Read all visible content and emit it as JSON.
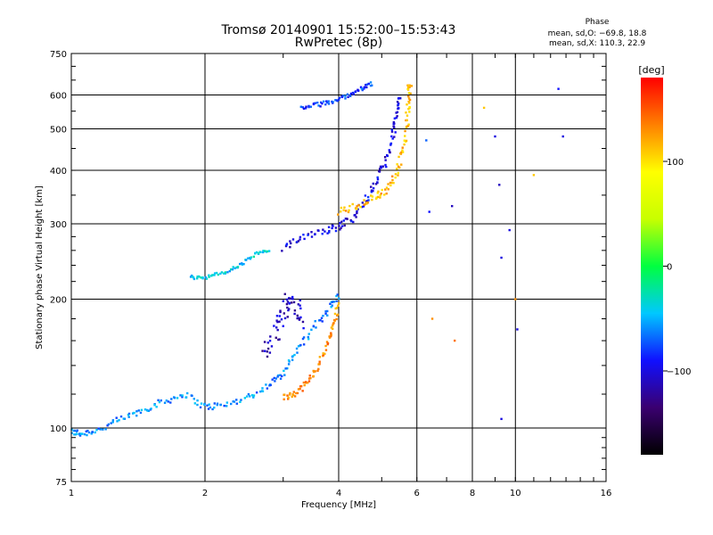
{
  "chart_data": {
    "type": "scatter",
    "title": "Tromsø 20140901 15:52:00–15:53:43",
    "subtitle": "RwPretec (8p)",
    "xlabel": "Frequency [MHz]",
    "ylabel": "Stationary phase Virtual Height [km]",
    "x_scale": "log2",
    "y_scale": "log",
    "xlim": [
      1,
      16
    ],
    "ylim": [
      75,
      750
    ],
    "x_ticks": [
      1,
      2,
      4,
      6,
      8,
      10,
      16
    ],
    "x_tick_labels": [
      "1",
      "2",
      "4",
      "6",
      "8",
      "10",
      "16"
    ],
    "y_ticks": [
      75,
      100,
      200,
      300,
      400,
      500,
      600,
      750
    ],
    "y_tick_labels": [
      "75",
      "100",
      "200",
      "300",
      "400",
      "500",
      "600",
      "750"
    ],
    "grid": true,
    "stats_block": {
      "heading": "Phase",
      "line1": "mean, sd,O: −69.8, 18.8",
      "line2": "mean, sd,X: 110.3, 22.9"
    },
    "colorbar": {
      "label": "[deg]",
      "range": [
        -180,
        180
      ],
      "ticks": [
        -100,
        0,
        100
      ],
      "tick_labels": [
        "−100",
        "0",
        "100"
      ],
      "colormap": [
        "#000000",
        "#3a0070",
        "#1010ff",
        "#00c8ff",
        "#00ff40",
        "#c8ff00",
        "#ffff00",
        "#ff8000",
        "#ff0000"
      ]
    },
    "traces": [
      {
        "label": "low_o_trace",
        "phase": -60,
        "spread": 0.018,
        "points": [
          [
            1.0,
            98
          ],
          [
            1.05,
            97
          ],
          [
            1.15,
            99
          ],
          [
            1.3,
            105
          ],
          [
            1.45,
            110
          ],
          [
            1.6,
            115
          ],
          [
            1.8,
            120
          ],
          [
            2.0,
            112
          ],
          [
            2.2,
            113
          ],
          [
            2.5,
            118
          ],
          [
            2.8,
            126
          ],
          [
            3.0,
            135
          ],
          [
            3.2,
            150
          ],
          [
            3.5,
            170
          ],
          [
            3.8,
            190
          ],
          [
            4.0,
            205
          ]
        ]
      },
      {
        "label": "low_x_trace",
        "phase": 130,
        "spread": 0.015,
        "points": [
          [
            3.0,
            118
          ],
          [
            3.2,
            120
          ],
          [
            3.4,
            128
          ],
          [
            3.6,
            140
          ],
          [
            3.8,
            160
          ],
          [
            3.9,
            175
          ],
          [
            4.0,
            195
          ]
        ]
      },
      {
        "label": "mid_blue_cluster",
        "phase": -110,
        "spread": 0.05,
        "points": [
          [
            2.7,
            150
          ],
          [
            2.9,
            165
          ],
          [
            3.0,
            185
          ],
          [
            3.1,
            200
          ],
          [
            3.2,
            190
          ],
          [
            3.3,
            175
          ]
        ]
      },
      {
        "label": "short_e_layer",
        "phase": -40,
        "spread": 0.01,
        "points": [
          [
            1.85,
            225
          ],
          [
            2.0,
            225
          ],
          [
            2.2,
            230
          ],
          [
            2.4,
            240
          ],
          [
            2.6,
            255
          ],
          [
            2.8,
            260
          ]
        ]
      },
      {
        "label": "f_layer_o",
        "phase": -100,
        "spread": 0.02,
        "points": [
          [
            3.0,
            260
          ],
          [
            3.3,
            280
          ],
          [
            3.7,
            290
          ],
          [
            4.0,
            295
          ],
          [
            4.3,
            310
          ],
          [
            4.6,
            340
          ],
          [
            4.9,
            380
          ],
          [
            5.1,
            420
          ],
          [
            5.3,
            480
          ],
          [
            5.4,
            540
          ],
          [
            5.5,
            600
          ]
        ]
      },
      {
        "label": "f_layer_x",
        "phase": 115,
        "spread": 0.02,
        "points": [
          [
            4.0,
            320
          ],
          [
            4.4,
            330
          ],
          [
            4.8,
            345
          ],
          [
            5.1,
            360
          ],
          [
            5.4,
            390
          ],
          [
            5.6,
            450
          ],
          [
            5.7,
            520
          ],
          [
            5.75,
            600
          ],
          [
            5.8,
            640
          ]
        ]
      },
      {
        "label": "upper_blue_trace",
        "phase": -80,
        "spread": 0.012,
        "points": [
          [
            3.3,
            560
          ],
          [
            3.6,
            570
          ],
          [
            3.9,
            580
          ],
          [
            4.2,
            600
          ],
          [
            4.5,
            620
          ],
          [
            4.8,
            640
          ]
        ]
      }
    ],
    "scatter_points": [
      {
        "x": 6.3,
        "y": 470,
        "phase": -70
      },
      {
        "x": 6.4,
        "y": 320,
        "phase": -90
      },
      {
        "x": 6.5,
        "y": 180,
        "phase": 130
      },
      {
        "x": 7.2,
        "y": 330,
        "phase": -110
      },
      {
        "x": 7.3,
        "y": 160,
        "phase": 140
      },
      {
        "x": 8.5,
        "y": 560,
        "phase": 110
      },
      {
        "x": 9.0,
        "y": 480,
        "phase": -100
      },
      {
        "x": 9.2,
        "y": 370,
        "phase": -110
      },
      {
        "x": 9.3,
        "y": 250,
        "phase": -100
      },
      {
        "x": 9.3,
        "y": 105,
        "phase": -100
      },
      {
        "x": 9.7,
        "y": 290,
        "phase": -100
      },
      {
        "x": 10.0,
        "y": 200,
        "phase": 130
      },
      {
        "x": 10.1,
        "y": 170,
        "phase": -100
      },
      {
        "x": 11.0,
        "y": 390,
        "phase": 110
      },
      {
        "x": 12.5,
        "y": 620,
        "phase": -90
      },
      {
        "x": 12.8,
        "y": 480,
        "phase": -100
      }
    ]
  }
}
